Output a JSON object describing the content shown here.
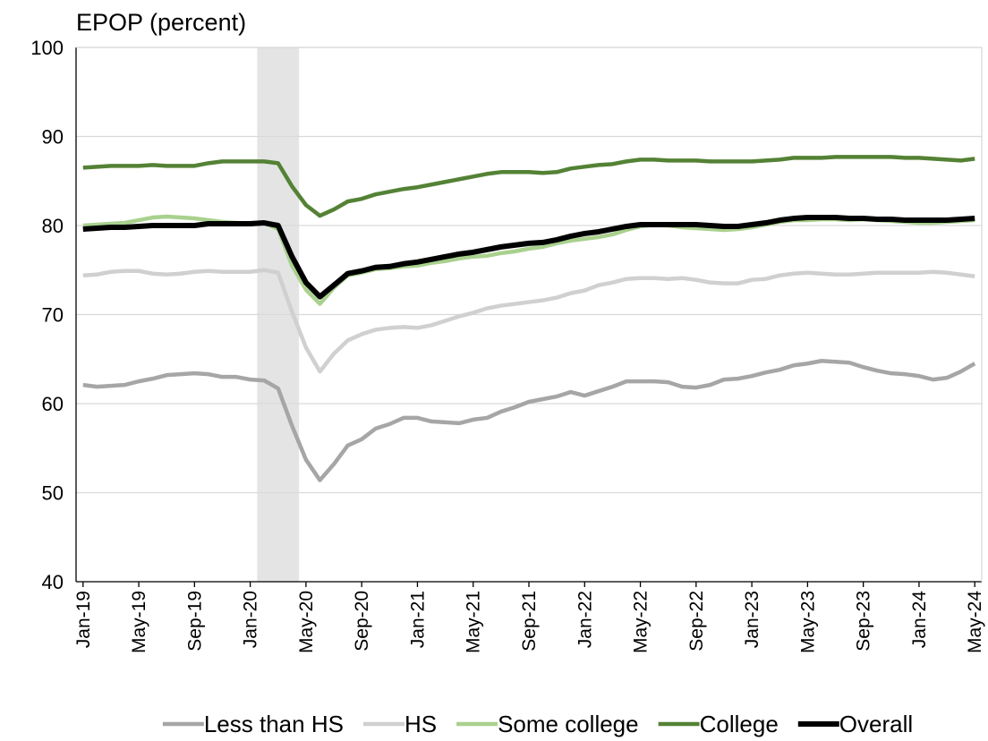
{
  "chart_data": {
    "type": "line",
    "title": "EPOP (percent)",
    "categories": [
      "Jan-19",
      null,
      null,
      null,
      "May-19",
      null,
      null,
      null,
      "Sep-19",
      null,
      null,
      null,
      "Jan-20",
      null,
      null,
      null,
      "May-20",
      null,
      null,
      null,
      "Sep-20",
      null,
      null,
      null,
      "Jan-21",
      null,
      null,
      null,
      "May-21",
      null,
      null,
      null,
      "Sep-21",
      null,
      null,
      null,
      "Jan-22",
      null,
      null,
      null,
      "May-22",
      null,
      null,
      null,
      "Sep-22",
      null,
      null,
      null,
      "Jan-23",
      null,
      null,
      null,
      "May-23",
      null,
      null,
      null,
      "Sep-23",
      null,
      null,
      null,
      "Jan-24",
      null,
      null,
      null,
      "May-24"
    ],
    "series": [
      {
        "name": "Less than HS",
        "color": "#a6a6a6",
        "values": [
          62.1,
          61.9,
          62.0,
          62.1,
          62.5,
          62.8,
          63.2,
          63.3,
          63.4,
          63.3,
          63.0,
          63.0,
          62.7,
          62.6,
          61.7,
          57.5,
          53.7,
          51.4,
          53.2,
          55.3,
          56.0,
          57.2,
          57.7,
          58.4,
          58.4,
          58.0,
          57.9,
          57.8,
          58.2,
          58.4,
          59.1,
          59.6,
          60.2,
          60.5,
          60.8,
          61.3,
          60.9,
          61.4,
          61.9,
          62.5,
          62.5,
          62.5,
          62.4,
          61.9,
          61.8,
          62.1,
          62.7,
          62.8,
          63.1,
          63.5,
          63.8,
          64.3,
          64.5,
          64.8,
          64.7,
          64.6,
          64.1,
          63.7,
          63.4,
          63.3,
          63.1,
          62.7,
          62.9,
          63.6,
          64.5
        ]
      },
      {
        "name": "HS",
        "color": "#d0d0d0",
        "values": [
          74.4,
          74.5,
          74.8,
          74.9,
          74.9,
          74.6,
          74.5,
          74.6,
          74.8,
          74.9,
          74.8,
          74.8,
          74.8,
          75.0,
          74.7,
          70.3,
          66.3,
          63.6,
          65.6,
          67.1,
          67.8,
          68.3,
          68.5,
          68.6,
          68.5,
          68.8,
          69.3,
          69.8,
          70.2,
          70.7,
          71.0,
          71.2,
          71.4,
          71.6,
          71.9,
          72.4,
          72.7,
          73.3,
          73.6,
          74.0,
          74.1,
          74.1,
          74.0,
          74.1,
          73.9,
          73.6,
          73.5,
          73.5,
          73.9,
          74.0,
          74.4,
          74.6,
          74.7,
          74.6,
          74.5,
          74.5,
          74.6,
          74.7,
          74.7,
          74.7,
          74.7,
          74.8,
          74.7,
          74.5,
          74.3
        ]
      },
      {
        "name": "Some college",
        "color": "#a9d18e",
        "values": [
          80.0,
          80.1,
          80.2,
          80.3,
          80.6,
          80.9,
          81.0,
          80.9,
          80.8,
          80.6,
          80.4,
          80.3,
          80.2,
          80.3,
          79.6,
          75.5,
          72.8,
          71.2,
          73.0,
          74.4,
          74.7,
          75.1,
          75.2,
          75.4,
          75.5,
          75.8,
          76.0,
          76.3,
          76.5,
          76.6,
          76.9,
          77.1,
          77.4,
          77.6,
          78.0,
          78.3,
          78.5,
          78.7,
          79.0,
          79.5,
          79.9,
          80.1,
          80.0,
          79.8,
          79.7,
          79.6,
          79.5,
          79.6,
          79.8,
          80.1,
          80.4,
          80.6,
          80.6,
          80.7,
          80.7,
          80.6,
          80.7,
          80.6,
          80.5,
          80.4,
          80.3,
          80.3,
          80.4,
          80.5,
          80.6
        ]
      },
      {
        "name": "College",
        "color": "#548235",
        "values": [
          86.5,
          86.6,
          86.7,
          86.7,
          86.7,
          86.8,
          86.7,
          86.7,
          86.7,
          87.0,
          87.2,
          87.2,
          87.2,
          87.2,
          87.0,
          84.4,
          82.3,
          81.1,
          81.8,
          82.7,
          83.0,
          83.5,
          83.8,
          84.1,
          84.3,
          84.6,
          84.9,
          85.2,
          85.5,
          85.8,
          86.0,
          86.0,
          86.0,
          85.9,
          86.0,
          86.4,
          86.6,
          86.8,
          86.9,
          87.2,
          87.4,
          87.4,
          87.3,
          87.3,
          87.3,
          87.2,
          87.2,
          87.2,
          87.2,
          87.3,
          87.4,
          87.6,
          87.6,
          87.6,
          87.7,
          87.7,
          87.7,
          87.7,
          87.7,
          87.6,
          87.6,
          87.5,
          87.4,
          87.3,
          87.5
        ]
      },
      {
        "name": "Overall",
        "color": "#000000",
        "values": [
          79.6,
          79.7,
          79.8,
          79.8,
          79.9,
          80.0,
          80.0,
          80.0,
          80.0,
          80.2,
          80.2,
          80.2,
          80.2,
          80.3,
          80.0,
          76.5,
          73.6,
          72.0,
          73.3,
          74.6,
          74.9,
          75.3,
          75.4,
          75.7,
          75.9,
          76.2,
          76.5,
          76.8,
          77.0,
          77.3,
          77.6,
          77.8,
          78.0,
          78.1,
          78.4,
          78.8,
          79.1,
          79.3,
          79.6,
          79.9,
          80.1,
          80.1,
          80.1,
          80.1,
          80.1,
          80.0,
          79.9,
          79.9,
          80.1,
          80.3,
          80.6,
          80.8,
          80.9,
          80.9,
          80.9,
          80.8,
          80.8,
          80.7,
          80.7,
          80.6,
          80.6,
          80.6,
          80.6,
          80.7,
          80.8
        ]
      }
    ],
    "ylim": [
      40,
      100
    ],
    "yticks": [
      40,
      50,
      60,
      70,
      80,
      90,
      100
    ],
    "grid": true,
    "legend": "bottom"
  }
}
